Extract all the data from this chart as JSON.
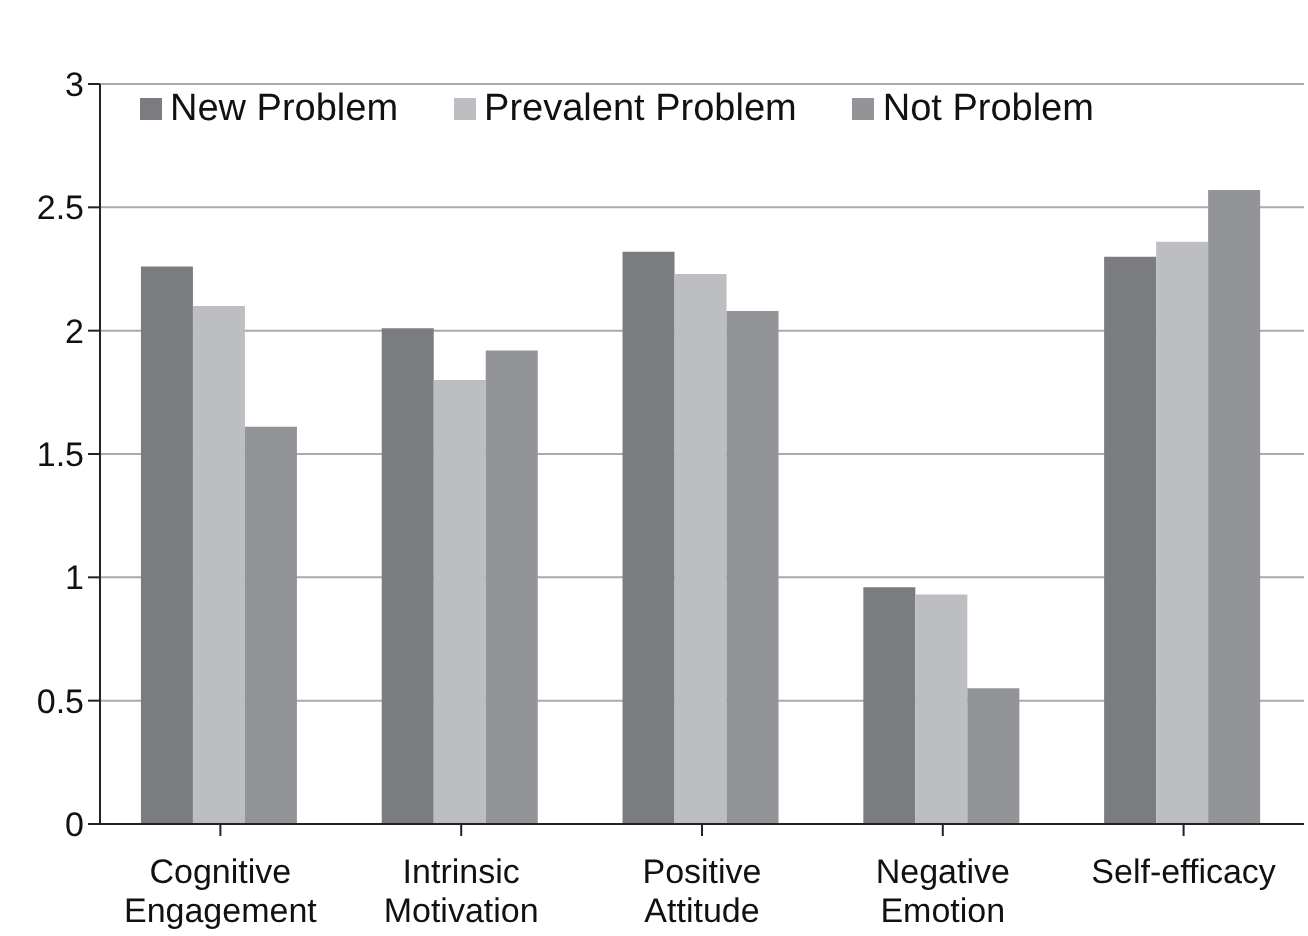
{
  "chart_data": {
    "type": "bar",
    "categories": [
      "Cognitive Engagement",
      "Intrinsic Motivation",
      "Positive Attitude",
      "Negative Emotion",
      "Self-efficacy"
    ],
    "series": [
      {
        "name": "New Problem",
        "color": "#7b7c80",
        "values": [
          2.26,
          2.01,
          2.32,
          0.96,
          2.3
        ]
      },
      {
        "name": "Prevalent Problem",
        "color": "#bdbec2",
        "values": [
          2.1,
          1.8,
          2.23,
          0.93,
          2.36
        ]
      },
      {
        "name": "Not Problem",
        "color": "#939498",
        "values": [
          1.61,
          1.92,
          2.08,
          0.55,
          2.57
        ]
      }
    ],
    "ylim": [
      0,
      3
    ],
    "yticks": [
      0,
      0.5,
      1,
      1.5,
      2,
      2.5,
      3
    ],
    "grid": "y",
    "legend": "top left"
  }
}
